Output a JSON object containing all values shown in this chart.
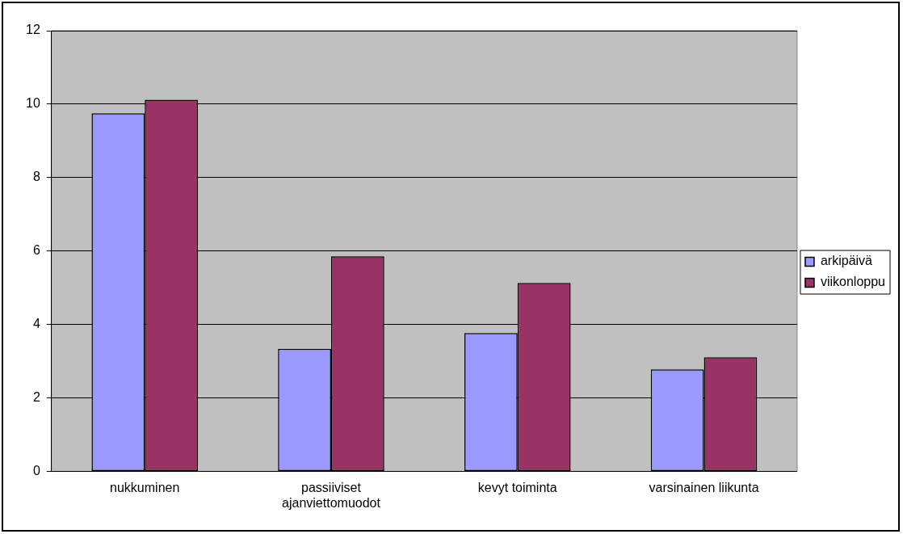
{
  "chart_data": {
    "type": "bar",
    "categories": [
      "nukkuminen",
      "passiiviset\najanviettomuodot",
      "kevyt toiminta",
      "varsinainen liikunta"
    ],
    "series": [
      {
        "name": "arkipäivä",
        "color": "#9999ff",
        "values": [
          9.75,
          3.34,
          3.77,
          2.78
        ]
      },
      {
        "name": "viikonloppu",
        "color": "#993366",
        "values": [
          10.12,
          5.86,
          5.13,
          3.11
        ]
      }
    ],
    "ylim": [
      0,
      12
    ],
    "yticks": [
      0,
      2,
      4,
      6,
      8,
      10,
      12
    ],
    "grid": "y",
    "legend": "right"
  }
}
